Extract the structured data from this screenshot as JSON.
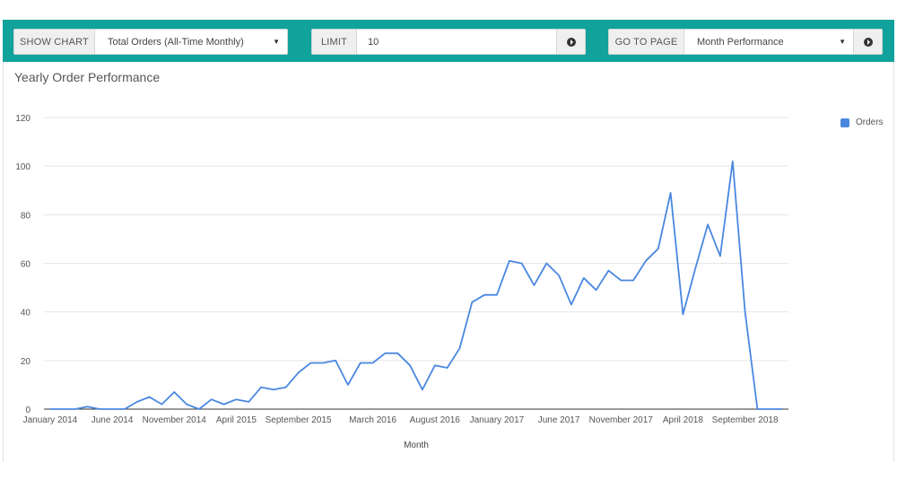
{
  "toolbar": {
    "show_chart": {
      "label": "SHOW CHART",
      "selected": "Total Orders (All-Time Monthly)"
    },
    "limit": {
      "label": "LIMIT",
      "value": "10"
    },
    "go_to_page": {
      "label": "GO TO PAGE",
      "selected": "Month Performance"
    }
  },
  "icons": {
    "dropdown": "caret-down-icon",
    "go": "circle-arrow-right-icon"
  },
  "colors": {
    "toolbar_bg": "#11a29c",
    "series": "#4a87e0",
    "grid": "#e6e6e6",
    "baseline": "#333333"
  },
  "chart_data": {
    "type": "line",
    "title": "Yearly Order Performance",
    "xlabel": "Month",
    "ylabel": "",
    "ylim": [
      0,
      120
    ],
    "yticks": [
      0,
      20,
      40,
      60,
      80,
      100,
      120
    ],
    "grid": true,
    "legend_position": "top-right",
    "x_tick_labels": [
      {
        "index": 0,
        "label": "January 2014"
      },
      {
        "index": 5,
        "label": "June 2014"
      },
      {
        "index": 10,
        "label": "November 2014"
      },
      {
        "index": 15,
        "label": "April 2015"
      },
      {
        "index": 20,
        "label": "September 2015"
      },
      {
        "index": 26,
        "label": "March 2016"
      },
      {
        "index": 31,
        "label": "August 2016"
      },
      {
        "index": 36,
        "label": "January 2017"
      },
      {
        "index": 41,
        "label": "June 2017"
      },
      {
        "index": 46,
        "label": "November 2017"
      },
      {
        "index": 51,
        "label": "April 2018"
      },
      {
        "index": 56,
        "label": "September 2018"
      }
    ],
    "series": [
      {
        "name": "Orders",
        "color": "#4a87e0",
        "values": [
          0,
          0,
          0,
          1,
          0,
          0,
          0,
          3,
          5,
          2,
          7,
          2,
          0,
          4,
          2,
          4,
          3,
          9,
          8,
          9,
          15,
          19,
          19,
          20,
          10,
          19,
          19,
          23,
          23,
          18,
          8,
          18,
          17,
          25,
          44,
          47,
          47,
          61,
          60,
          51,
          60,
          55,
          43,
          54,
          49,
          57,
          53,
          53,
          61,
          66,
          89,
          39,
          58,
          76,
          63,
          102,
          40,
          0,
          0,
          0
        ]
      }
    ]
  }
}
